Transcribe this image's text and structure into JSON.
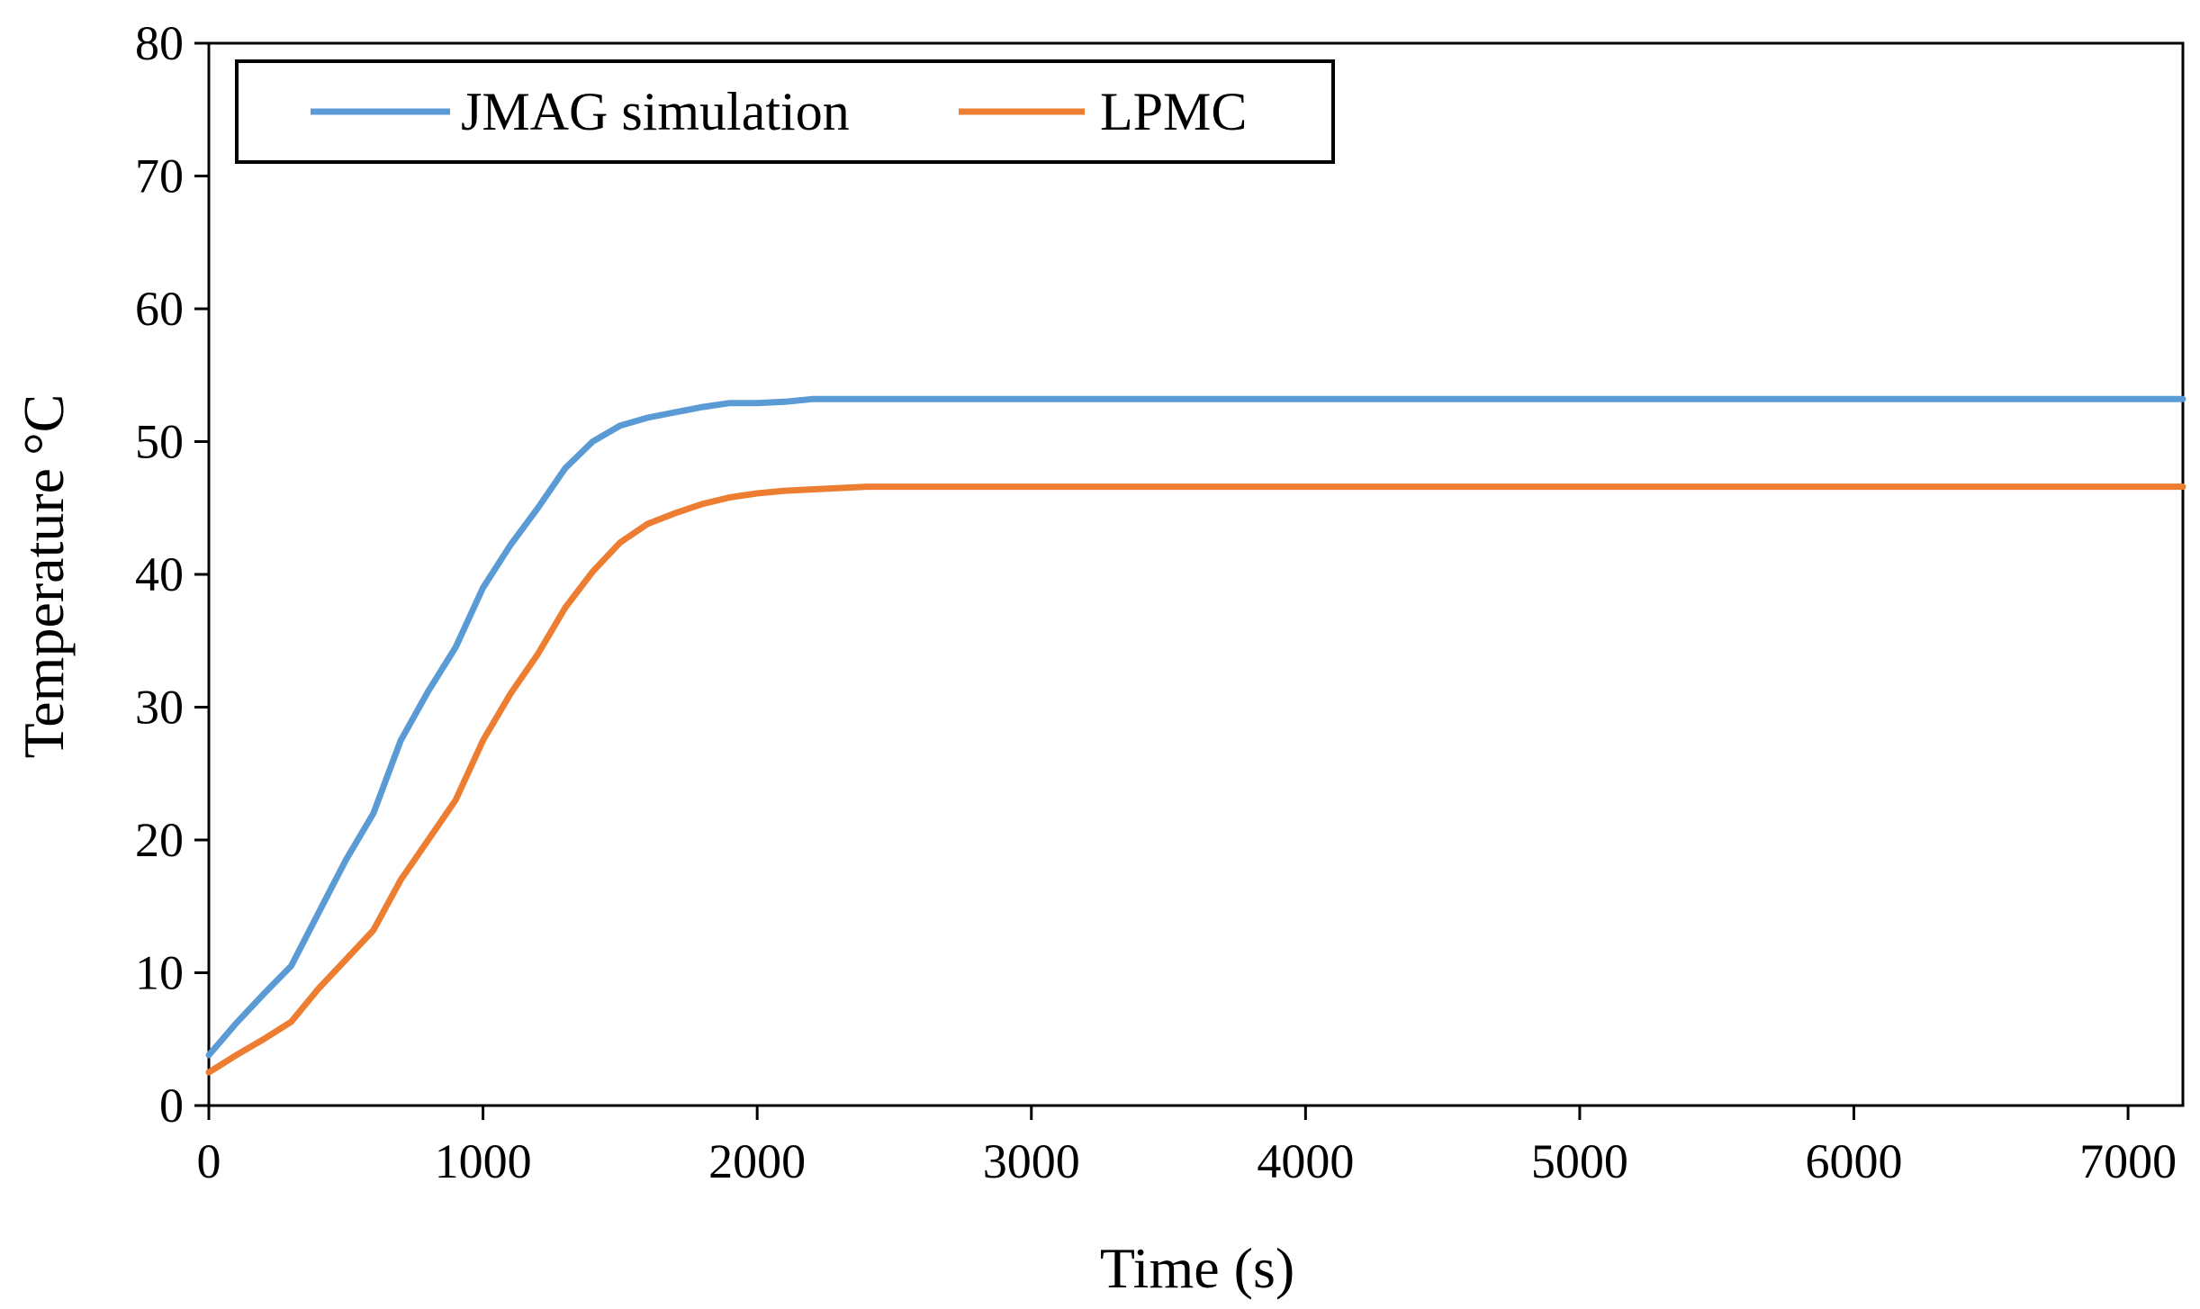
{
  "chart_data": {
    "type": "line",
    "title": "",
    "xlabel": "Time (s)",
    "ylabel": "Temperature",
    "ylabel_unit": "°C",
    "xlim": [
      0,
      7200
    ],
    "ylim": [
      0,
      80
    ],
    "x_ticks": [
      0,
      1000,
      2000,
      3000,
      4000,
      5000,
      6000,
      7000
    ],
    "x_tick_labels": [
      "0",
      "1000",
      "2000",
      "3000",
      "4000",
      "5000",
      "6000",
      "7000"
    ],
    "y_ticks": [
      0,
      10,
      20,
      30,
      40,
      50,
      60,
      70,
      80
    ],
    "y_tick_labels": [
      "0",
      "10",
      "20",
      "30",
      "40",
      "50",
      "60",
      "70",
      "80"
    ],
    "grid": false,
    "legend_position": "top-left",
    "series": [
      {
        "name": "JMAG simulation",
        "color": "#5b9bd5",
        "x": [
          0,
          100,
          200,
          300,
          400,
          500,
          600,
          700,
          800,
          900,
          1000,
          1100,
          1200,
          1300,
          1400,
          1500,
          1600,
          1700,
          1800,
          1900,
          2000,
          2100,
          2200,
          2500,
          3000,
          4000,
          5000,
          6000,
          7000,
          7200
        ],
        "y": [
          3.8,
          6.2,
          8.4,
          10.5,
          14.5,
          18.5,
          22,
          27.5,
          31.2,
          34.5,
          39,
          42.2,
          45,
          48,
          50,
          51.2,
          51.8,
          52.2,
          52.6,
          52.9,
          52.9,
          53.0,
          53.2,
          53.2,
          53.2,
          53.2,
          53.2,
          53.2,
          53.2,
          53.2
        ]
      },
      {
        "name": "LPMC",
        "color": "#ed7d31",
        "x": [
          0,
          100,
          200,
          300,
          400,
          500,
          600,
          700,
          800,
          900,
          1000,
          1100,
          1200,
          1300,
          1400,
          1500,
          1600,
          1700,
          1800,
          1900,
          2000,
          2100,
          2200,
          2300,
          2400,
          3000,
          4000,
          5000,
          6000,
          7000,
          7200
        ],
        "y": [
          2.5,
          3.8,
          5.0,
          6.3,
          8.8,
          11,
          13.2,
          17,
          20,
          23,
          27.5,
          31,
          34,
          37.5,
          40.2,
          42.4,
          43.8,
          44.6,
          45.3,
          45.8,
          46.1,
          46.3,
          46.4,
          46.5,
          46.6,
          46.6,
          46.6,
          46.6,
          46.6,
          46.6,
          46.6
        ]
      }
    ]
  }
}
